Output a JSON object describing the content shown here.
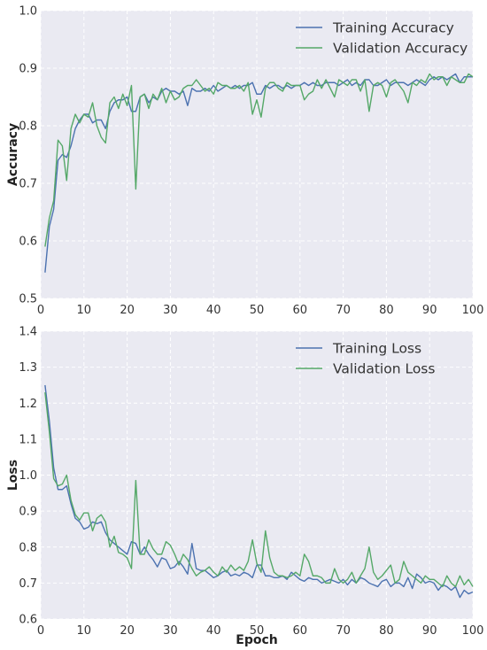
{
  "chart_data": [
    {
      "type": "line",
      "title": "",
      "xlabel": "",
      "ylabel": "Accuracy",
      "xlim": [
        0,
        100
      ],
      "ylim": [
        0.5,
        1.0
      ],
      "xticks": [
        0,
        10,
        20,
        30,
        40,
        50,
        60,
        70,
        80,
        90,
        100
      ],
      "yticks": [
        0.5,
        0.6,
        0.7,
        0.8,
        0.9,
        1.0
      ],
      "ytick_labels": [
        "0.5",
        "0.6",
        "0.7",
        "0.8",
        "0.9",
        "1.0"
      ],
      "grid": true,
      "legend_position": "top-right",
      "series": [
        {
          "name": "Training Accuracy",
          "color": "#4c72b0",
          "x": [
            1,
            2,
            3,
            4,
            5,
            6,
            7,
            8,
            9,
            10,
            11,
            12,
            13,
            14,
            15,
            16,
            17,
            18,
            19,
            20,
            21,
            22,
            23,
            24,
            25,
            26,
            27,
            28,
            29,
            30,
            31,
            32,
            33,
            34,
            35,
            36,
            37,
            38,
            39,
            40,
            41,
            42,
            43,
            44,
            45,
            46,
            47,
            48,
            49,
            50,
            51,
            52,
            53,
            54,
            55,
            56,
            57,
            58,
            59,
            60,
            61,
            62,
            63,
            64,
            65,
            66,
            67,
            68,
            69,
            70,
            71,
            72,
            73,
            74,
            75,
            76,
            77,
            78,
            79,
            80,
            81,
            82,
            83,
            84,
            85,
            86,
            87,
            88,
            89,
            90,
            91,
            92,
            93,
            94,
            95,
            96,
            97,
            98,
            99,
            100
          ],
          "values": [
            0.545,
            0.625,
            0.655,
            0.74,
            0.75,
            0.745,
            0.765,
            0.795,
            0.81,
            0.82,
            0.82,
            0.805,
            0.81,
            0.81,
            0.795,
            0.825,
            0.84,
            0.845,
            0.845,
            0.85,
            0.825,
            0.825,
            0.85,
            0.855,
            0.84,
            0.85,
            0.845,
            0.86,
            0.865,
            0.86,
            0.86,
            0.855,
            0.86,
            0.835,
            0.865,
            0.86,
            0.86,
            0.865,
            0.86,
            0.87,
            0.86,
            0.865,
            0.87,
            0.865,
            0.87,
            0.865,
            0.87,
            0.87,
            0.875,
            0.855,
            0.855,
            0.87,
            0.865,
            0.87,
            0.87,
            0.865,
            0.87,
            0.865,
            0.87,
            0.87,
            0.875,
            0.87,
            0.875,
            0.87,
            0.87,
            0.875,
            0.875,
            0.875,
            0.87,
            0.875,
            0.88,
            0.87,
            0.875,
            0.87,
            0.88,
            0.88,
            0.87,
            0.87,
            0.875,
            0.88,
            0.87,
            0.875,
            0.875,
            0.875,
            0.87,
            0.875,
            0.88,
            0.875,
            0.87,
            0.88,
            0.885,
            0.88,
            0.885,
            0.88,
            0.885,
            0.89,
            0.875,
            0.885,
            0.885,
            0.885
          ]
        },
        {
          "name": "Validation Accuracy",
          "color": "#55a868",
          "x": [
            1,
            2,
            3,
            4,
            5,
            6,
            7,
            8,
            9,
            10,
            11,
            12,
            13,
            14,
            15,
            16,
            17,
            18,
            19,
            20,
            21,
            22,
            23,
            24,
            25,
            26,
            27,
            28,
            29,
            30,
            31,
            32,
            33,
            34,
            35,
            36,
            37,
            38,
            39,
            40,
            41,
            42,
            43,
            44,
            45,
            46,
            47,
            48,
            49,
            50,
            51,
            52,
            53,
            54,
            55,
            56,
            57,
            58,
            59,
            60,
            61,
            62,
            63,
            64,
            65,
            66,
            67,
            68,
            69,
            70,
            71,
            72,
            73,
            74,
            75,
            76,
            77,
            78,
            79,
            80,
            81,
            82,
            83,
            84,
            85,
            86,
            87,
            88,
            89,
            90,
            91,
            92,
            93,
            94,
            95,
            96,
            97,
            98,
            99,
            100
          ],
          "values": [
            0.59,
            0.64,
            0.67,
            0.775,
            0.765,
            0.705,
            0.795,
            0.82,
            0.805,
            0.82,
            0.815,
            0.84,
            0.8,
            0.78,
            0.77,
            0.84,
            0.85,
            0.83,
            0.855,
            0.835,
            0.87,
            0.69,
            0.85,
            0.855,
            0.83,
            0.855,
            0.845,
            0.865,
            0.84,
            0.86,
            0.845,
            0.85,
            0.865,
            0.87,
            0.87,
            0.88,
            0.87,
            0.86,
            0.865,
            0.855,
            0.875,
            0.87,
            0.87,
            0.865,
            0.865,
            0.87,
            0.86,
            0.875,
            0.82,
            0.845,
            0.815,
            0.865,
            0.875,
            0.875,
            0.865,
            0.86,
            0.875,
            0.87,
            0.87,
            0.87,
            0.845,
            0.855,
            0.86,
            0.88,
            0.865,
            0.88,
            0.865,
            0.85,
            0.88,
            0.875,
            0.87,
            0.88,
            0.88,
            0.86,
            0.88,
            0.825,
            0.87,
            0.875,
            0.87,
            0.85,
            0.875,
            0.88,
            0.87,
            0.86,
            0.84,
            0.875,
            0.87,
            0.88,
            0.875,
            0.89,
            0.88,
            0.885,
            0.885,
            0.87,
            0.885,
            0.88,
            0.875,
            0.875,
            0.89,
            0.885
          ]
        }
      ]
    },
    {
      "type": "line",
      "title": "",
      "xlabel": "Epoch",
      "ylabel": "Loss",
      "xlim": [
        0,
        100
      ],
      "ylim": [
        0.6,
        1.4
      ],
      "xticks": [
        0,
        10,
        20,
        30,
        40,
        50,
        60,
        70,
        80,
        90,
        100
      ],
      "yticks": [
        0.6,
        0.7,
        0.8,
        0.9,
        1.0,
        1.1,
        1.2,
        1.3,
        1.4
      ],
      "ytick_labels": [
        "0.6",
        "0.7",
        "0.8",
        "0.9",
        "1.0",
        "1.1",
        "1.2",
        "1.3",
        "1.4"
      ],
      "grid": true,
      "legend_position": "top-right",
      "series": [
        {
          "name": "Training Loss",
          "color": "#4c72b0",
          "x": [
            1,
            2,
            3,
            4,
            5,
            6,
            7,
            8,
            9,
            10,
            11,
            12,
            13,
            14,
            15,
            16,
            17,
            18,
            19,
            20,
            21,
            22,
            23,
            24,
            25,
            26,
            27,
            28,
            29,
            30,
            31,
            32,
            33,
            34,
            35,
            36,
            37,
            38,
            39,
            40,
            41,
            42,
            43,
            44,
            45,
            46,
            47,
            48,
            49,
            50,
            51,
            52,
            53,
            54,
            55,
            56,
            57,
            58,
            59,
            60,
            61,
            62,
            63,
            64,
            65,
            66,
            67,
            68,
            69,
            70,
            71,
            72,
            73,
            74,
            75,
            76,
            77,
            78,
            79,
            80,
            81,
            82,
            83,
            84,
            85,
            86,
            87,
            88,
            89,
            90,
            91,
            92,
            93,
            94,
            95,
            96,
            97,
            98,
            99,
            100
          ],
          "values": [
            1.25,
            1.15,
            1.02,
            0.96,
            0.96,
            0.97,
            0.92,
            0.88,
            0.87,
            0.85,
            0.855,
            0.87,
            0.865,
            0.87,
            0.84,
            0.82,
            0.81,
            0.8,
            0.79,
            0.78,
            0.815,
            0.81,
            0.78,
            0.8,
            0.78,
            0.765,
            0.745,
            0.77,
            0.765,
            0.74,
            0.745,
            0.76,
            0.745,
            0.725,
            0.81,
            0.74,
            0.735,
            0.735,
            0.725,
            0.715,
            0.72,
            0.73,
            0.735,
            0.72,
            0.725,
            0.72,
            0.73,
            0.725,
            0.715,
            0.75,
            0.75,
            0.72,
            0.72,
            0.715,
            0.715,
            0.72,
            0.71,
            0.73,
            0.72,
            0.71,
            0.705,
            0.715,
            0.71,
            0.71,
            0.7,
            0.705,
            0.71,
            0.705,
            0.7,
            0.71,
            0.695,
            0.71,
            0.7,
            0.715,
            0.71,
            0.7,
            0.695,
            0.69,
            0.705,
            0.71,
            0.69,
            0.7,
            0.7,
            0.69,
            0.715,
            0.685,
            0.725,
            0.715,
            0.7,
            0.705,
            0.7,
            0.68,
            0.695,
            0.69,
            0.68,
            0.69,
            0.66,
            0.68,
            0.67,
            0.675
          ]
        },
        {
          "name": "Validation Loss",
          "color": "#55a868",
          "x": [
            1,
            2,
            3,
            4,
            5,
            6,
            7,
            8,
            9,
            10,
            11,
            12,
            13,
            14,
            15,
            16,
            17,
            18,
            19,
            20,
            21,
            22,
            23,
            24,
            25,
            26,
            27,
            28,
            29,
            30,
            31,
            32,
            33,
            34,
            35,
            36,
            37,
            38,
            39,
            40,
            41,
            42,
            43,
            44,
            45,
            46,
            47,
            48,
            49,
            50,
            51,
            52,
            53,
            54,
            55,
            56,
            57,
            58,
            59,
            60,
            61,
            62,
            63,
            64,
            65,
            66,
            67,
            68,
            69,
            70,
            71,
            72,
            73,
            74,
            75,
            76,
            77,
            78,
            79,
            80,
            81,
            82,
            83,
            84,
            85,
            86,
            87,
            88,
            89,
            90,
            91,
            92,
            93,
            94,
            95,
            96,
            97,
            98,
            99,
            100
          ],
          "values": [
            1.23,
            1.12,
            0.99,
            0.97,
            0.975,
            1.0,
            0.93,
            0.89,
            0.875,
            0.895,
            0.895,
            0.845,
            0.88,
            0.89,
            0.87,
            0.8,
            0.83,
            0.785,
            0.78,
            0.77,
            0.74,
            0.985,
            0.78,
            0.78,
            0.82,
            0.795,
            0.78,
            0.78,
            0.815,
            0.805,
            0.78,
            0.75,
            0.78,
            0.765,
            0.74,
            0.72,
            0.73,
            0.735,
            0.745,
            0.73,
            0.72,
            0.745,
            0.73,
            0.75,
            0.735,
            0.745,
            0.735,
            0.76,
            0.82,
            0.755,
            0.73,
            0.845,
            0.77,
            0.73,
            0.72,
            0.72,
            0.715,
            0.72,
            0.73,
            0.72,
            0.78,
            0.76,
            0.72,
            0.72,
            0.715,
            0.7,
            0.7,
            0.74,
            0.71,
            0.7,
            0.71,
            0.73,
            0.7,
            0.72,
            0.74,
            0.8,
            0.73,
            0.71,
            0.72,
            0.735,
            0.75,
            0.7,
            0.71,
            0.76,
            0.73,
            0.72,
            0.71,
            0.7,
            0.72,
            0.71,
            0.71,
            0.7,
            0.69,
            0.72,
            0.7,
            0.69,
            0.72,
            0.695,
            0.71,
            0.69
          ]
        }
      ]
    }
  ]
}
